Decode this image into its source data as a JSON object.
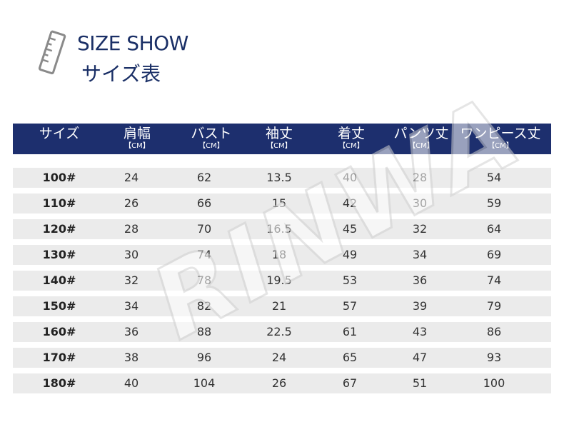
{
  "title": {
    "en": "SIZE SHOW",
    "ja": "サイズ表"
  },
  "watermark": "RINWA",
  "columns": [
    {
      "label": "サイズ",
      "unit": ""
    },
    {
      "label": "肩幅",
      "unit": "【CM】"
    },
    {
      "label": "バスト",
      "unit": "【CM】"
    },
    {
      "label": "袖丈",
      "unit": "【CM】"
    },
    {
      "label": "着丈",
      "unit": "【CM】"
    },
    {
      "label": "パンツ丈",
      "unit": "【CM】"
    },
    {
      "label": "ワンピース丈",
      "unit": "【CM】"
    }
  ],
  "rows": [
    [
      "100#",
      "24",
      "62",
      "13.5",
      "40",
      "28",
      "54"
    ],
    [
      "110#",
      "26",
      "66",
      "15",
      "42",
      "30",
      "59"
    ],
    [
      "120#",
      "28",
      "70",
      "16.5",
      "45",
      "32",
      "64"
    ],
    [
      "130#",
      "30",
      "74",
      "18",
      "49",
      "34",
      "69"
    ],
    [
      "140#",
      "32",
      "78",
      "19.5",
      "53",
      "36",
      "74"
    ],
    [
      "150#",
      "34",
      "82",
      "21",
      "57",
      "39",
      "79"
    ],
    [
      "160#",
      "36",
      "88",
      "22.5",
      "61",
      "43",
      "86"
    ],
    [
      "170#",
      "38",
      "96",
      "24",
      "65",
      "47",
      "93"
    ],
    [
      "180#",
      "40",
      "104",
      "26",
      "67",
      "51",
      "100"
    ]
  ]
}
